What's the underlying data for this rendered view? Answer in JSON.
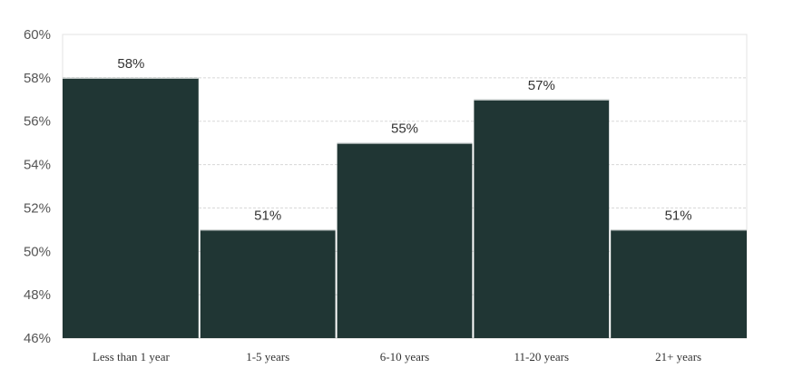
{
  "chart_data": {
    "type": "bar",
    "categories": [
      "Less than 1 year",
      "1-5 years",
      "6-10 years",
      "11-20 years",
      "21+ years"
    ],
    "values": [
      58,
      51,
      55,
      57,
      51
    ],
    "data_labels": [
      "58%",
      "51%",
      "55%",
      "57%",
      "51%"
    ],
    "ylim": [
      46,
      60
    ],
    "yticks": [
      46,
      48,
      50,
      52,
      54,
      56,
      58,
      60
    ],
    "ytick_labels": [
      "46%",
      "48%",
      "50%",
      "52%",
      "54%",
      "56%",
      "58%",
      "60%"
    ],
    "title": "",
    "xlabel": "",
    "ylabel": "",
    "grid": true,
    "legend": "none",
    "bar_color": "#203634"
  }
}
